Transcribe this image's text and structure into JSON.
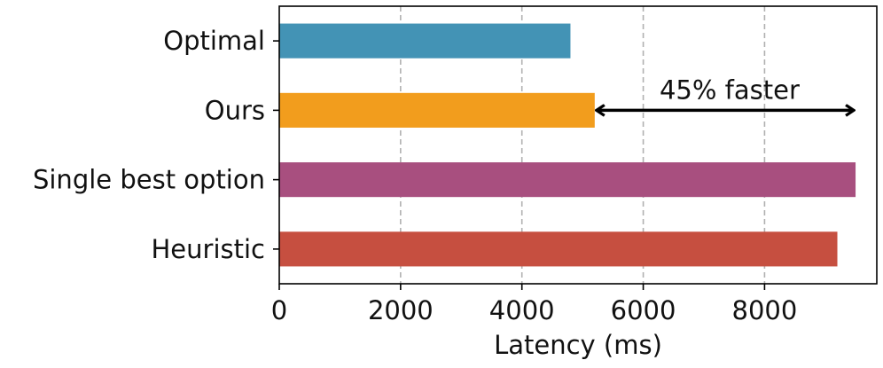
{
  "chart_data": {
    "type": "bar",
    "orientation": "horizontal",
    "categories": [
      "Optimal",
      "Ours",
      "Single best option",
      "Heuristic"
    ],
    "values": [
      4800,
      5200,
      9500,
      9200
    ],
    "colors": [
      "#4393b5",
      "#f29d1d",
      "#a84f7f",
      "#c64f40"
    ],
    "xlabel": "Latency (ms)",
    "ylabel": "",
    "title": "",
    "xlim": [
      0,
      9850
    ],
    "xticks": [
      0,
      2000,
      4000,
      6000,
      8000
    ],
    "xtick_labels": [
      "0",
      "2000",
      "4000",
      "6000",
      "8000"
    ],
    "grid": "x-dashed",
    "annotation": {
      "text": "45% faster",
      "from": 5200,
      "to": 9500,
      "category": "Ours"
    }
  }
}
